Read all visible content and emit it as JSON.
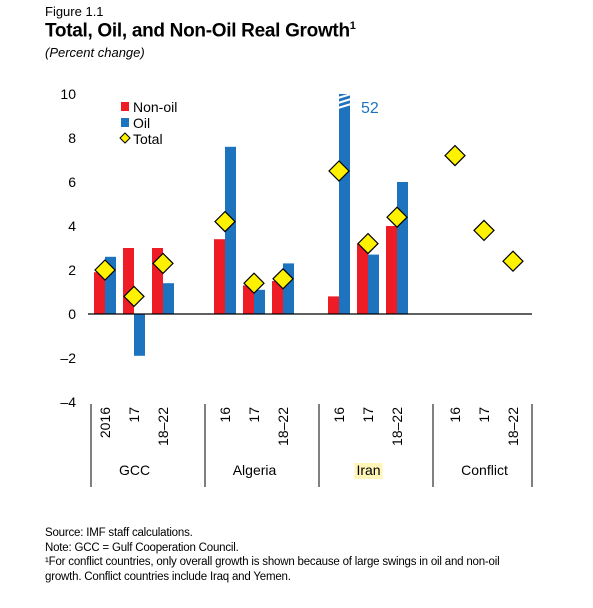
{
  "figure_label": "Figure 1.1",
  "title": "Total, Oil, and Non-Oil Real Growth",
  "title_sup": "1",
  "subtitle": "(Percent change)",
  "notes": {
    "source": "Source: IMF staff calculations.",
    "note": "Note: GCC = Gulf Cooperation Council.",
    "footnote_1": "¹For conflict countries, only overall growth is shown because of large swings in oil and non-oil",
    "footnote_2": "growth. Conflict countries include Iraq and Yemen."
  },
  "colors": {
    "nonoil": "#ee1c25",
    "oil": "#1e73be",
    "total_fill": "#fff200",
    "total_stroke": "#000000",
    "highlight": "#fff5b8",
    "truncated_label": "#1e73be"
  },
  "chart_data": {
    "type": "bar",
    "ylim": [
      -4,
      10
    ],
    "yticks": [
      "10",
      "8",
      "6",
      "4",
      "2",
      "0",
      "–2",
      "–4"
    ],
    "ytick_values": [
      10,
      8,
      6,
      4,
      2,
      0,
      -2,
      -4
    ],
    "legend": {
      "placement": "top-left",
      "items": [
        "Non-oil",
        "Oil",
        "Total"
      ]
    },
    "groups": [
      {
        "name": "GCC",
        "highlight": false,
        "categories": [
          "2016",
          "17",
          "18–22"
        ],
        "nonoil": [
          1.9,
          3.0,
          3.0
        ],
        "oil": [
          2.6,
          -1.9,
          1.4
        ],
        "total": [
          2.0,
          0.8,
          2.3
        ]
      },
      {
        "name": "Algeria",
        "highlight": false,
        "categories": [
          "16",
          "17",
          "18–22"
        ],
        "nonoil": [
          3.4,
          1.3,
          1.5
        ],
        "oil": [
          7.6,
          1.1,
          2.3
        ],
        "total": [
          4.2,
          1.4,
          1.6
        ]
      },
      {
        "name": "Iran",
        "highlight": true,
        "categories": [
          "16",
          "17",
          "18–22"
        ],
        "nonoil": [
          0.8,
          3.2,
          4.0
        ],
        "oil": [
          52,
          2.7,
          6.0
        ],
        "total": [
          6.5,
          3.2,
          4.4
        ]
      },
      {
        "name": "Conflict",
        "highlight": false,
        "categories": [
          "16",
          "17",
          "18–22"
        ],
        "nonoil": [
          null,
          null,
          null
        ],
        "oil": [
          null,
          null,
          null
        ],
        "total": [
          7.2,
          3.8,
          2.4
        ]
      }
    ],
    "truncated": {
      "label": "52"
    }
  }
}
